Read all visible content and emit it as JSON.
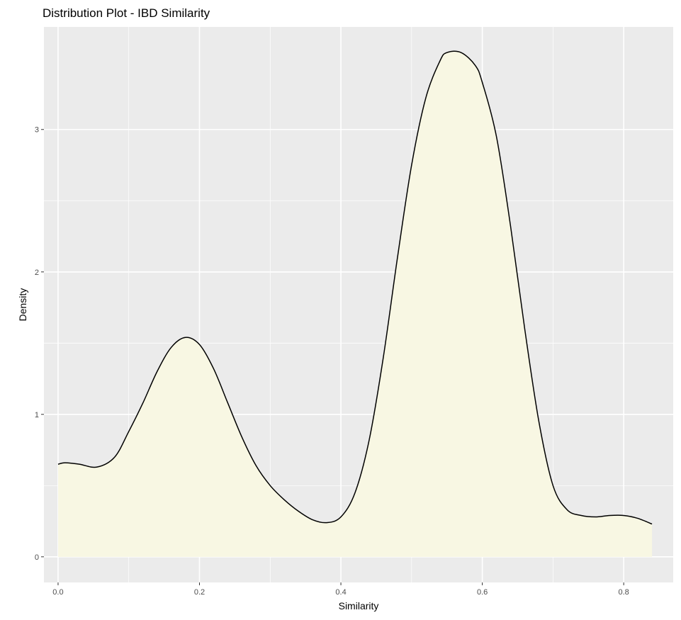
{
  "chart_data": {
    "type": "area",
    "title": "Distribution Plot - IBD Similarity",
    "xlabel": "Similarity",
    "ylabel": "Density",
    "xlim": [
      -0.02,
      0.87
    ],
    "ylim": [
      -0.18,
      3.72
    ],
    "x_ticks": [
      0.0,
      0.2,
      0.4,
      0.6,
      0.8
    ],
    "x_tick_labels": [
      "0.0",
      "0.2",
      "0.4",
      "0.6",
      "0.8"
    ],
    "y_ticks": [
      0,
      1,
      2,
      3
    ],
    "y_tick_labels": [
      "0",
      "1",
      "2",
      "3"
    ],
    "grid": true,
    "colors": {
      "panel_background": "#ebebeb",
      "grid_major": "#ffffff",
      "fill": "#f8f7e3",
      "line": "#000000"
    },
    "series": [
      {
        "x": [
          0.0,
          0.01,
          0.03,
          0.055,
          0.08,
          0.1,
          0.12,
          0.14,
          0.16,
          0.18,
          0.2,
          0.22,
          0.24,
          0.26,
          0.28,
          0.3,
          0.32,
          0.34,
          0.36,
          0.38,
          0.4,
          0.42,
          0.44,
          0.46,
          0.48,
          0.5,
          0.52,
          0.54,
          0.55,
          0.57,
          0.59,
          0.6,
          0.62,
          0.64,
          0.66,
          0.68,
          0.7,
          0.72,
          0.74,
          0.76,
          0.78,
          0.8,
          0.82,
          0.84
        ],
        "y": [
          0.65,
          0.66,
          0.65,
          0.63,
          0.7,
          0.88,
          1.08,
          1.3,
          1.47,
          1.54,
          1.49,
          1.32,
          1.08,
          0.84,
          0.64,
          0.5,
          0.4,
          0.32,
          0.26,
          0.24,
          0.28,
          0.45,
          0.82,
          1.4,
          2.1,
          2.75,
          3.22,
          3.48,
          3.54,
          3.54,
          3.45,
          3.33,
          2.95,
          2.32,
          1.6,
          0.95,
          0.5,
          0.33,
          0.29,
          0.28,
          0.29,
          0.29,
          0.27,
          0.23
        ]
      }
    ]
  }
}
